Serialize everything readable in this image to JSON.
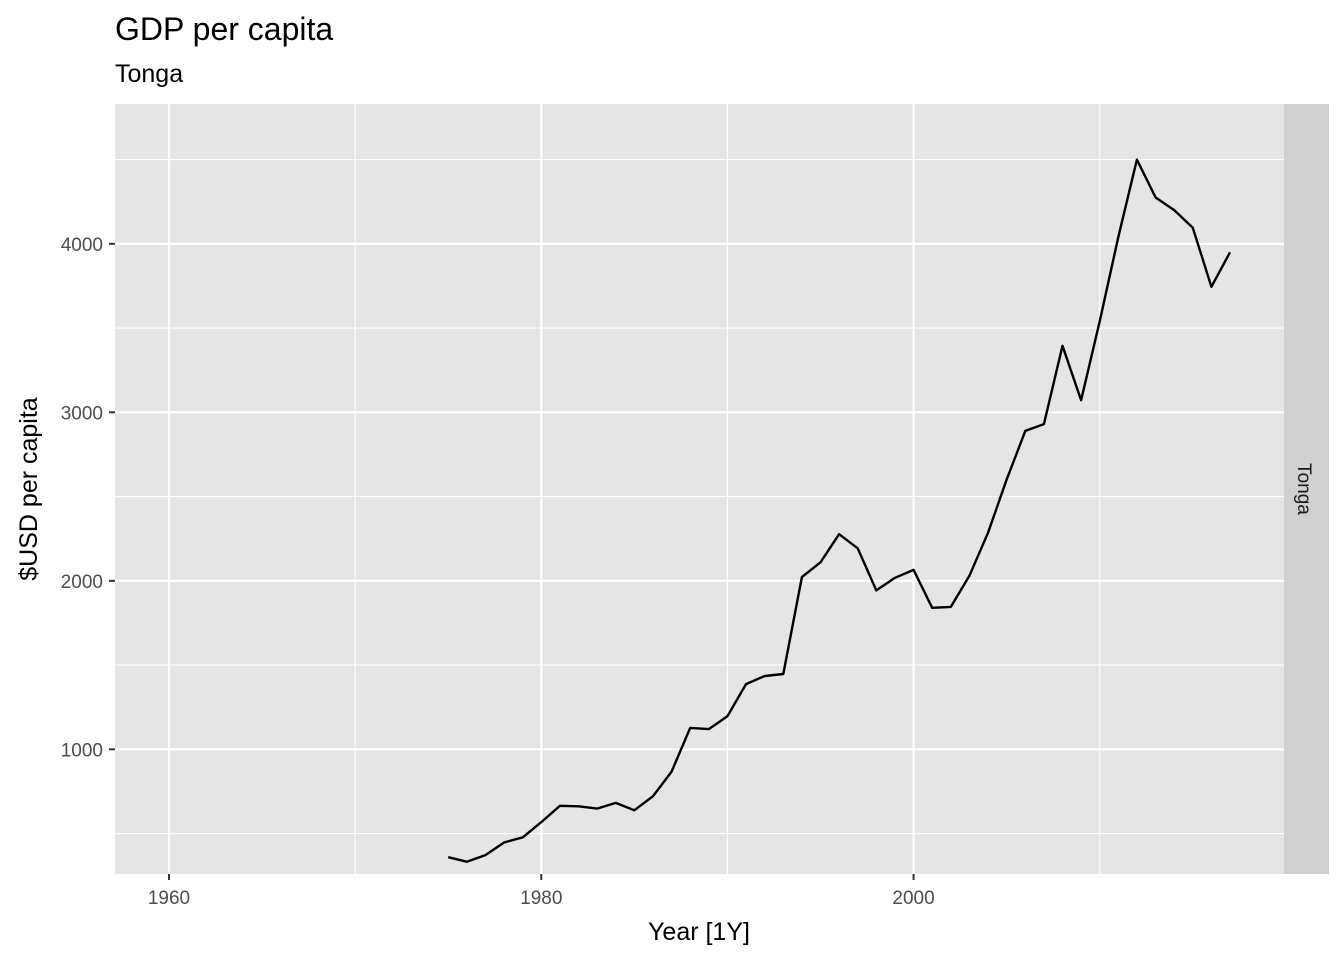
{
  "chart_data": {
    "type": "line",
    "title": "GDP per capita",
    "subtitle": "Tonga",
    "xlabel": "Year [1Y]",
    "ylabel": "$USD per capita",
    "facet_label": "Tonga",
    "xlim": [
      1957.1,
      2019.9
    ],
    "ylim": [
      260,
      4830
    ],
    "x_major_ticks": [
      1960,
      1980,
      2000
    ],
    "x_minor_ticks": [
      1970,
      1990,
      2010
    ],
    "y_major_ticks": [
      1000,
      2000,
      3000,
      4000
    ],
    "y_minor_ticks": [
      500,
      1500,
      2500,
      3500,
      4500
    ],
    "x_tick_labels": [
      "1960",
      "1980",
      "2000"
    ],
    "y_tick_labels": [
      "1000",
      "2000",
      "3000",
      "4000"
    ],
    "grid": true,
    "line_color": "#000000",
    "panel_color": "#e5e5e5",
    "strip_color": "#d0d0d0",
    "series": [
      {
        "x": [
          1975,
          1976,
          1977,
          1978,
          1979,
          1980,
          1981,
          1982,
          1983,
          1984,
          1985,
          1986,
          1987,
          1988,
          1989,
          1990,
          1991,
          1992,
          1993,
          1994,
          1995,
          1996,
          1997,
          1998,
          1999,
          2000,
          2001,
          2002,
          2003,
          2004,
          2005,
          2006,
          2007,
          2008,
          2009,
          2010,
          2011,
          2012,
          2013,
          2014,
          2015,
          2016,
          2017
        ],
        "y": [
          360,
          333,
          372,
          447,
          477,
          568,
          665,
          662,
          648,
          682,
          638,
          722,
          868,
          1127,
          1120,
          1196,
          1387,
          1435,
          1447,
          2022,
          2110,
          2277,
          2193,
          1943,
          2018,
          2065,
          1840,
          1845,
          2030,
          2285,
          2600,
          2890,
          2930,
          3395,
          3072,
          3540,
          4040,
          4500,
          4275,
          4200,
          4095,
          3745,
          3950
        ]
      }
    ]
  }
}
